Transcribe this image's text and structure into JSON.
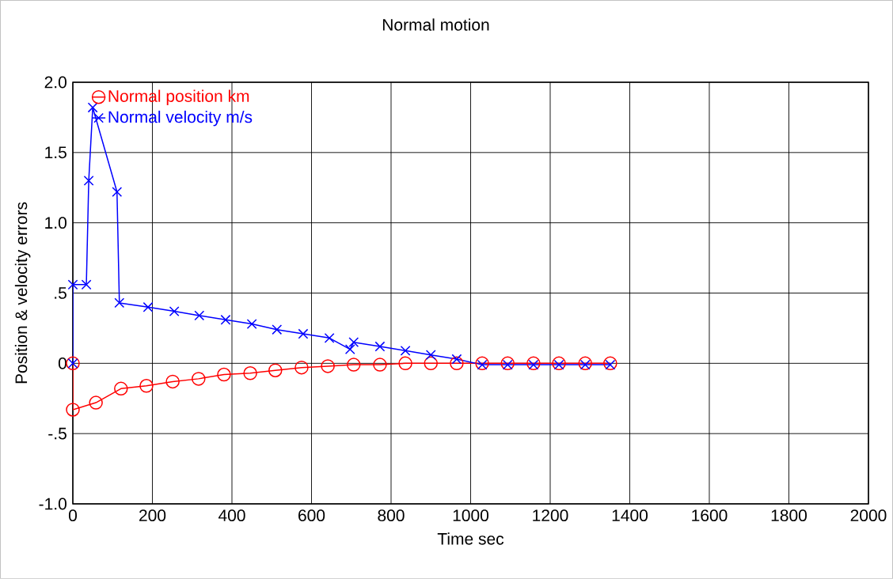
{
  "chart_data": {
    "type": "line",
    "title": "Normal motion",
    "xlabel": "Time sec",
    "ylabel": "Position & velocity errors",
    "xlim": [
      0,
      2000
    ],
    "xticks": [
      0,
      200,
      400,
      600,
      800,
      1000,
      1200,
      1400,
      1600,
      1800,
      2000
    ],
    "ylim": [
      -1.0,
      2.0
    ],
    "yticks": [
      {
        "value": 2.0,
        "label": "2.0"
      },
      {
        "value": 1.5,
        "label": "1.5"
      },
      {
        "value": 1.0,
        "label": "1.0"
      },
      {
        "value": 0.5,
        "label": ".5"
      },
      {
        "value": 0,
        "label": "0"
      },
      {
        "value": -0.5,
        "label": "-.5"
      },
      {
        "value": -1.0,
        "label": "-1.0"
      }
    ],
    "grid": true,
    "legend": "top left",
    "line_style": "solid",
    "series": [
      {
        "name": "Normal position km",
        "color": "#ff0000",
        "marker": "circle",
        "x": [
          0,
          0,
          58,
          121,
          185,
          251,
          316,
          380,
          446,
          509,
          575,
          641,
          706,
          772,
          836,
          900,
          965,
          1029,
          1093,
          1158,
          1222,
          1288,
          1351
        ],
        "values": [
          0,
          -0.33,
          -0.28,
          -0.18,
          -0.16,
          -0.13,
          -0.11,
          -0.08,
          -0.07,
          -0.05,
          -0.03,
          -0.02,
          -0.01,
          -0.01,
          0,
          0,
          0,
          0,
          0,
          0,
          0,
          0,
          0
        ]
      },
      {
        "name": "Normal velocity m/s",
        "color": "#0000ff",
        "marker": "cross",
        "x": [
          0,
          0,
          34,
          40,
          50,
          111,
          117,
          189,
          255,
          318,
          384,
          450,
          513,
          579,
          645,
          697,
          706,
          772,
          836,
          900,
          965,
          1029,
          1093,
          1158,
          1222,
          1288,
          1351
        ],
        "values": [
          0,
          0.56,
          0.56,
          1.3,
          1.82,
          1.22,
          0.43,
          0.4,
          0.37,
          0.34,
          0.31,
          0.28,
          0.24,
          0.21,
          0.18,
          0.1,
          0.15,
          0.12,
          0.09,
          0.06,
          0.03,
          -0.01,
          -0.01,
          -0.01,
          -0.01,
          -0.01,
          -0.01
        ]
      }
    ]
  }
}
